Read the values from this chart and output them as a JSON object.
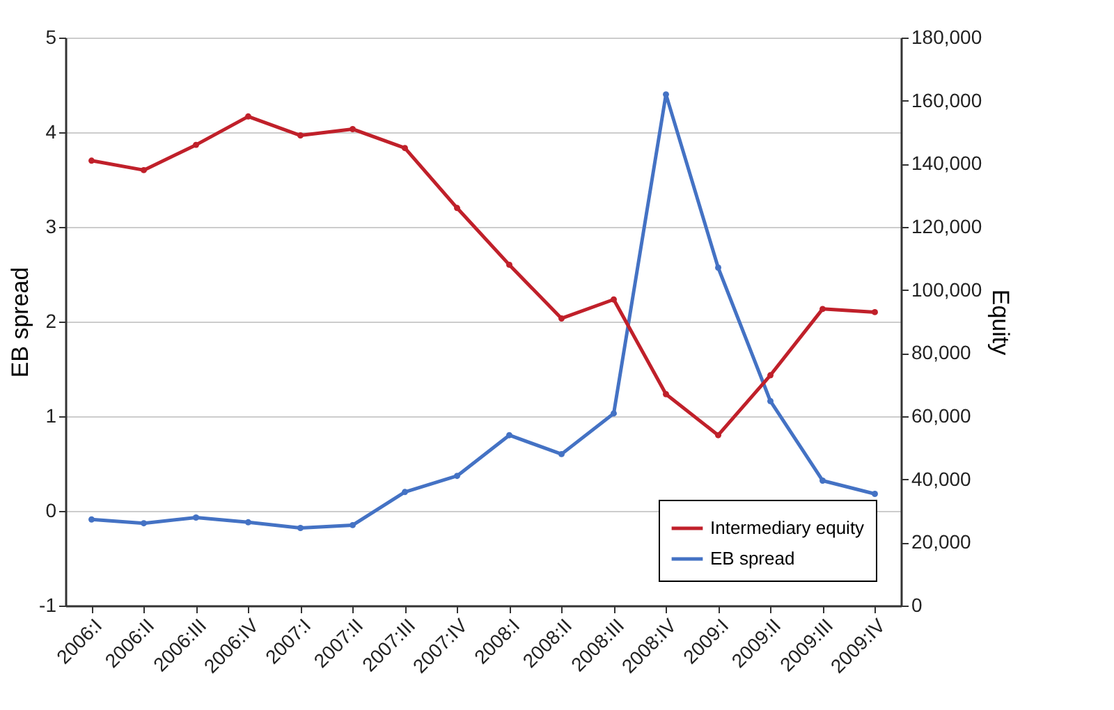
{
  "chart_data": {
    "type": "line",
    "categories": [
      "2006:I",
      "2006:II",
      "2006:III",
      "2006:IV",
      "2007:I",
      "2007:II",
      "2007:III",
      "2007:IV",
      "2008:I",
      "2008:II",
      "2008:III",
      "2008:IV",
      "2009:I",
      "2009:II",
      "2009:III",
      "2009:IV"
    ],
    "ylabel": "EB spread",
    "y2label": "Equity",
    "ylim": [
      -1,
      5
    ],
    "yticks": [
      -1,
      0,
      1,
      2,
      3,
      4,
      5
    ],
    "y2lim": [
      0,
      180000
    ],
    "y2ticks": [
      0,
      {
        "value": 20000,
        "label": "20,000"
      },
      {
        "value": 40000,
        "label": "40,000"
      },
      {
        "value": 60000,
        "label": "60,000"
      },
      {
        "value": 80000,
        "label": "80,000"
      },
      {
        "value": 100000,
        "label": "100,000"
      },
      {
        "value": 120000,
        "label": "120,000"
      },
      {
        "value": 140000,
        "label": "140,000"
      },
      {
        "value": 160000,
        "label": "160,000"
      },
      {
        "value": 180000,
        "label": "180,000"
      }
    ],
    "series": [
      {
        "name": "Intermediary equity",
        "color": "#c0202a",
        "axis": "y2",
        "values": [
          141000,
          138000,
          146000,
          155000,
          149000,
          151000,
          145000,
          126000,
          108000,
          91000,
          97000,
          67000,
          54000,
          73000,
          94000,
          93000
        ]
      },
      {
        "name": "EB spread",
        "color": "#4472c4",
        "values": [
          -0.09,
          -0.13,
          -0.07,
          -0.12,
          -0.18,
          -0.15,
          0.2,
          0.37,
          0.8,
          0.6,
          1.03,
          4.4,
          2.57,
          1.16,
          0.32,
          0.18
        ]
      }
    ],
    "grid": "y",
    "legend": "bottom right",
    "marker": "circle",
    "line_style": "solid"
  }
}
